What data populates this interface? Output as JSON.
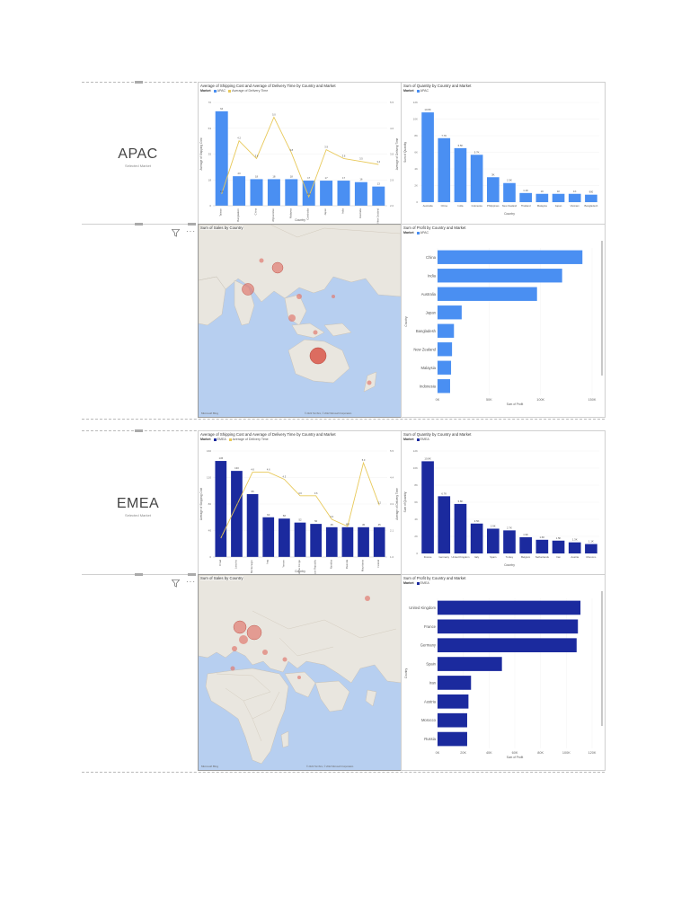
{
  "apac": {
    "region_title": "APAC",
    "region_subtitle": "Selected Market",
    "combo": {
      "title": "Average of Shipping Cost and Average of Delivery Time by Country and Market",
      "legend_label": "Market",
      "legend_market": "APAC",
      "legend_line": "Average of Delivery Time",
      "xlabel": "Country",
      "ylabel_left": "Average of Shipping Cost",
      "ylabel_right": "Average of Delivery Time",
      "bar_color": "#4a8ff2",
      "line_color": "#e8c95a"
    },
    "quantity": {
      "title": "Sum of Quantity by Country and Market",
      "legend_label": "Market",
      "legend_market": "APAC",
      "xlabel": "Country",
      "ylabel": "Sum of Quantity",
      "bar_color": "#4a8ff2"
    },
    "map": {
      "title": "Sum of Sales by Country",
      "footer_left": "Microsoft Bing",
      "footer_right": "© 2022 TomTom, © 2022 Microsoft Corporation"
    },
    "profit": {
      "title": "Sum of Profit by Country and Market",
      "legend_label": "Market",
      "legend_market": "APAC",
      "xlabel": "Sum of Profit",
      "ylabel": "Country",
      "bar_color": "#4a8ff2"
    }
  },
  "emea": {
    "region_title": "EMEA",
    "region_subtitle": "Selected Market",
    "combo": {
      "title": "Average of Shipping Cost and Average of Delivery Time by Country and Market",
      "legend_label": "Market",
      "legend_market": "EMEA",
      "legend_line": "Average of Delivery Time",
      "xlabel": "Country",
      "ylabel_left": "Average of Shipping Cost",
      "ylabel_right": "Average of Delivery Time",
      "bar_color": "#1b2a9e",
      "line_color": "#e8c95a"
    },
    "quantity": {
      "title": "Sum of Quantity by Country and Market",
      "legend_label": "Market",
      "legend_market": "EMEA",
      "xlabel": "Country",
      "ylabel": "Sum of Quantity",
      "bar_color": "#1b2a9e"
    },
    "map": {
      "title": "Sum of Sales by Country",
      "footer_left": "Microsoft Bing",
      "footer_right": "© 2022 TomTom, © 2022 Microsoft Corporation"
    },
    "profit": {
      "title": "Sum of Profit by Country and Market",
      "legend_label": "Market",
      "legend_market": "EMEA",
      "xlabel": "Sum of Profit",
      "ylabel": "Country",
      "bar_color": "#1b2a9e"
    }
  },
  "icons": {
    "filter": "filter-icon",
    "more": "more-options-icon"
  },
  "chart_data": [
    {
      "id": "apac-combo",
      "type": "bar",
      "title": "Average of Shipping Cost and Average of Delivery Time by Country and Market",
      "categories": [
        "Taiwan",
        "Bangladesh",
        "China",
        "Afghanistan",
        "Malaysia",
        "Cambodia",
        "Japan",
        "India",
        "Australia",
        "New Zealand"
      ],
      "series": [
        {
          "name": "APAC",
          "kind": "bar",
          "axis": "left",
          "values": [
            64,
            20,
            18,
            18,
            18,
            17,
            17,
            17,
            16,
            13
          ]
        },
        {
          "name": "Average of Delivery Time",
          "kind": "line",
          "axis": "right",
          "values": [
            2.4,
            4.2,
            3.6,
            5.0,
            3.8,
            2.3,
            3.9,
            3.6,
            3.5,
            3.4
          ]
        }
      ],
      "ylim_left": [
        0,
        70
      ],
      "ylim_right": [
        2.0,
        5.5
      ],
      "xlabel": "Country",
      "ylabel": "Average of Shipping Cost"
    },
    {
      "id": "apac-quantity",
      "type": "bar",
      "title": "Sum of Quantity by Country and Market",
      "categories": [
        "Australia",
        "China",
        "India",
        "Indonesia",
        "Philippines",
        "New Zealand",
        "Thailand",
        "Malaysia",
        "Japan",
        "Vietnam",
        "Bangladesh"
      ],
      "series": [
        {
          "name": "APAC",
          "values": [
            10800,
            7700,
            6500,
            5700,
            3000,
            2300,
            1100,
            1000,
            1000,
            1000,
            900
          ]
        }
      ],
      "ylim": [
        0,
        12000
      ],
      "xlabel": "Country",
      "ylabel": "Sum of Quantity"
    },
    {
      "id": "apac-profit",
      "type": "bar",
      "orientation": "horizontal",
      "title": "Sum of Profit by Country and Market",
      "categories": [
        "China",
        "India",
        "Australia",
        "Japan",
        "Bangladesh",
        "New Zealand",
        "Malaysia",
        "Indonesia"
      ],
      "series": [
        {
          "name": "APAC",
          "values": [
            150000,
            129000,
            103000,
            25000,
            17000,
            15000,
            14000,
            13000
          ]
        }
      ],
      "xticks": [
        "0K",
        "50K",
        "100K",
        "150K"
      ],
      "xlim": [
        0,
        160000
      ],
      "xlabel": "Sum of Profit",
      "ylabel": "Country"
    },
    {
      "id": "emea-combo",
      "type": "bar",
      "title": "Average of Shipping Cost and Average of Delivery Time by Country and Market",
      "categories": [
        "Chad",
        "Lesotho",
        "Montenegro",
        "Iraq",
        "Yemen",
        "Republic of the Congo",
        "Central African Republic",
        "Namibia",
        "Rwanda",
        "Mauritania",
        "Ireland"
      ],
      "series": [
        {
          "name": "EMEA",
          "kind": "bar",
          "axis": "left",
          "values": [
            145,
            130,
            95,
            60,
            58,
            52,
            50,
            45,
            45,
            45,
            45
          ]
        },
        {
          "name": "Average of Delivery Time",
          "kind": "line",
          "axis": "right",
          "values": [
            1.8,
            3.2,
            4.6,
            4.6,
            4.3,
            3.6,
            3.6,
            2.6,
            2.3,
            5.0,
            3.2
          ]
        }
      ],
      "ylim_left": [
        0,
        160
      ],
      "ylim_right": [
        1.0,
        5.5
      ],
      "xlabel": "Country",
      "ylabel": "Average of Shipping Cost"
    },
    {
      "id": "emea-quantity",
      "type": "bar",
      "title": "Sum of Quantity by Country and Market",
      "categories": [
        "France",
        "Germany",
        "United Kingdom",
        "Italy",
        "Spain",
        "Turkey",
        "Belgium",
        "Netherlands",
        "Iran",
        "Austria",
        "Morocco"
      ],
      "series": [
        {
          "name": "EMEA",
          "values": [
            10800,
            6700,
            5800,
            3500,
            2900,
            2700,
            1900,
            1600,
            1500,
            1300,
            1100
          ]
        }
      ],
      "ylim": [
        0,
        12000
      ],
      "xlabel": "Country",
      "ylabel": "Sum of Quantity"
    },
    {
      "id": "emea-profit",
      "type": "bar",
      "orientation": "horizontal",
      "title": "Sum of Profit by Country and Market",
      "categories": [
        "United Kingdom",
        "France",
        "Germany",
        "Spain",
        "Iran",
        "Austria",
        "Morocco",
        "Russia"
      ],
      "series": [
        {
          "name": "EMEA",
          "values": [
            111000,
            109000,
            108000,
            50000,
            26000,
            24000,
            23000,
            23000
          ]
        }
      ],
      "xticks": [
        "0K",
        "20K",
        "40K",
        "60K",
        "80K",
        "100K",
        "120K"
      ],
      "xlim": [
        0,
        120000
      ],
      "xlabel": "Sum of Profit",
      "ylabel": "Country"
    }
  ]
}
